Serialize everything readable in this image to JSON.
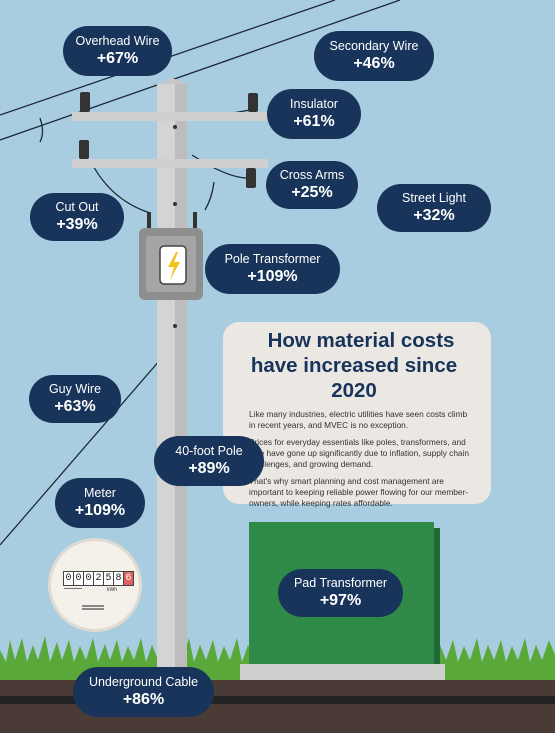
{
  "title_line1": "How material costs",
  "title_line2": "have increased since 2020",
  "paragraphs": [
    "Like many industries, electric utilities have seen costs climb in recent years, and MVEC is no exception.",
    "Prices for everyday essentials like poles, transformers, and wire have gone up significantly due to inflation, supply chain challenges, and growing demand.",
    "That's why smart planning and cost management are important to keeping reliable power flowing for our member-owners, while keeping rates affordable."
  ],
  "items": [
    {
      "label": "Overhead Wire",
      "value": "+67%"
    },
    {
      "label": "Secondary Wire",
      "value": "+46%"
    },
    {
      "label": "Insulator",
      "value": "+61%"
    },
    {
      "label": "Cross Arms",
      "value": "+25%"
    },
    {
      "label": "Street Light",
      "value": "+32%"
    },
    {
      "label": "Cut Out",
      "value": "+39%"
    },
    {
      "label": "Pole Transformer",
      "value": "+109%"
    },
    {
      "label": "Guy Wire",
      "value": "+63%"
    },
    {
      "label": "40-foot Pole",
      "value": "+89%"
    },
    {
      "label": "Meter",
      "value": "+109%"
    },
    {
      "label": "Pad Transformer",
      "value": "+97%"
    },
    {
      "label": "Underground Cable",
      "value": "+86%"
    }
  ],
  "meter": {
    "digits": [
      "0",
      "0",
      "0",
      "2",
      "5",
      "8",
      "6"
    ],
    "unit": "kWh"
  },
  "colors": {
    "sky": "#a9cde0",
    "navy": "#18345a",
    "card": "#ebe7e2",
    "pad_transformer": "#2f8a48",
    "grass": "#5aa83a",
    "soil": "#4a3b36"
  }
}
